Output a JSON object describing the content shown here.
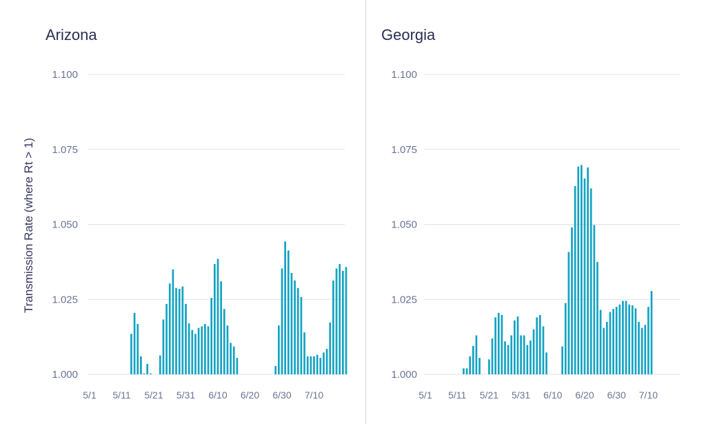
{
  "y_axis_label": "Transmission Rate (where Rt > 1)",
  "colors": {
    "bar": "#13a3c3",
    "grid": "#dfe2ea",
    "title": "#2b2d52",
    "tick": "#6a7396"
  },
  "chart_data": [
    {
      "type": "bar",
      "title": "Arizona",
      "ylabel": "Transmission Rate (where Rt > 1)",
      "ylim": [
        1.0,
        1.1
      ],
      "yticks": [
        "1.000",
        "1.025",
        "1.050",
        "1.075",
        "1.100"
      ],
      "xticks": [
        "5/1",
        "5/11",
        "5/21",
        "5/31",
        "6/10",
        "6/20",
        "6/30",
        "7/10"
      ],
      "grid": true,
      "x_start": "5/1",
      "points": [
        [
          13,
          1.0135
        ],
        [
          14,
          1.0205
        ],
        [
          15,
          1.0168
        ],
        [
          16,
          1.006
        ],
        [
          17,
          1.0003
        ],
        [
          18,
          1.0035
        ],
        [
          19,
          1.0003
        ],
        [
          22,
          1.0063
        ],
        [
          23,
          1.0183
        ],
        [
          24,
          1.0235
        ],
        [
          25,
          1.0303
        ],
        [
          26,
          1.035
        ],
        [
          27,
          1.0288
        ],
        [
          28,
          1.0285
        ],
        [
          29,
          1.0293
        ],
        [
          30,
          1.0235
        ],
        [
          31,
          1.017
        ],
        [
          32,
          1.0148
        ],
        [
          33,
          1.0135
        ],
        [
          34,
          1.0155
        ],
        [
          35,
          1.016
        ],
        [
          36,
          1.0168
        ],
        [
          37,
          1.016
        ],
        [
          38,
          1.0255
        ],
        [
          39,
          1.0368
        ],
        [
          40,
          1.0385
        ],
        [
          41,
          1.031
        ],
        [
          42,
          1.0218
        ],
        [
          43,
          1.0163
        ],
        [
          44,
          1.0105
        ],
        [
          45,
          1.0093
        ],
        [
          46,
          1.0055
        ],
        [
          58,
          1.0028
        ],
        [
          59,
          1.0163
        ],
        [
          60,
          1.0353
        ],
        [
          61,
          1.0443
        ],
        [
          62,
          1.0413
        ],
        [
          63,
          1.0338
        ],
        [
          64,
          1.0313
        ],
        [
          65,
          1.0288
        ],
        [
          66,
          1.0258
        ],
        [
          67,
          1.014
        ],
        [
          68,
          1.006
        ],
        [
          69,
          1.006
        ],
        [
          70,
          1.006
        ],
        [
          71,
          1.0065
        ],
        [
          72,
          1.0055
        ],
        [
          73,
          1.0073
        ],
        [
          74,
          1.0085
        ],
        [
          75,
          1.0173
        ],
        [
          76,
          1.0313
        ],
        [
          77,
          1.0353
        ],
        [
          78,
          1.0368
        ],
        [
          79,
          1.0345
        ],
        [
          80,
          1.0358
        ]
      ]
    },
    {
      "type": "bar",
      "title": "Georgia",
      "ylim": [
        1.0,
        1.1
      ],
      "yticks": [
        "1.000",
        "1.025",
        "1.050",
        "1.075",
        "1.100"
      ],
      "xticks": [
        "5/1",
        "5/11",
        "5/21",
        "5/31",
        "6/10",
        "6/20",
        "6/30",
        "7/10"
      ],
      "grid": true,
      "x_start": "5/1",
      "points": [
        [
          12,
          1.002
        ],
        [
          13,
          1.002
        ],
        [
          14,
          1.006
        ],
        [
          15,
          1.0095
        ],
        [
          16,
          1.013
        ],
        [
          17,
          1.0055
        ],
        [
          20,
          1.005
        ],
        [
          21,
          1.012
        ],
        [
          22,
          1.019
        ],
        [
          23,
          1.0205
        ],
        [
          24,
          1.0198
        ],
        [
          25,
          1.011
        ],
        [
          26,
          1.0098
        ],
        [
          27,
          1.013
        ],
        [
          28,
          1.018
        ],
        [
          29,
          1.0193
        ],
        [
          30,
          1.013
        ],
        [
          31,
          1.013
        ],
        [
          32,
          1.0098
        ],
        [
          33,
          1.0113
        ],
        [
          34,
          1.015
        ],
        [
          35,
          1.019
        ],
        [
          36,
          1.0198
        ],
        [
          37,
          1.016
        ],
        [
          38,
          1.0073
        ],
        [
          43,
          1.0093
        ],
        [
          44,
          1.0238
        ],
        [
          45,
          1.0408
        ],
        [
          46,
          1.049
        ],
        [
          47,
          1.0628
        ],
        [
          48,
          1.0693
        ],
        [
          49,
          1.0698
        ],
        [
          50,
          1.0653
        ],
        [
          51,
          1.069
        ],
        [
          52,
          1.062
        ],
        [
          53,
          1.0498
        ],
        [
          54,
          1.0375
        ],
        [
          55,
          1.0215
        ],
        [
          56,
          1.0155
        ],
        [
          57,
          1.0175
        ],
        [
          58,
          1.0208
        ],
        [
          59,
          1.0218
        ],
        [
          60,
          1.0225
        ],
        [
          61,
          1.0233
        ],
        [
          62,
          1.0245
        ],
        [
          63,
          1.0245
        ],
        [
          64,
          1.0233
        ],
        [
          65,
          1.023
        ],
        [
          66,
          1.022
        ],
        [
          67,
          1.0175
        ],
        [
          68,
          1.0155
        ],
        [
          69,
          1.0165
        ],
        [
          70,
          1.0225
        ],
        [
          71,
          1.0278
        ]
      ]
    }
  ]
}
